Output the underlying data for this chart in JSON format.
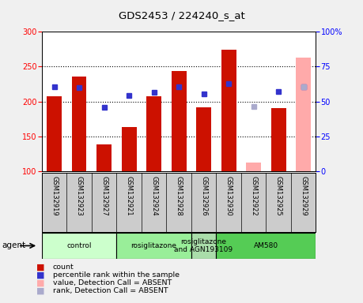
{
  "title": "GDS2453 / 224240_s_at",
  "samples": [
    "GSM132919",
    "GSM132923",
    "GSM132927",
    "GSM132921",
    "GSM132924",
    "GSM132928",
    "GSM132926",
    "GSM132930",
    "GSM132922",
    "GSM132925",
    "GSM132929"
  ],
  "bar_values": [
    207,
    236,
    138,
    163,
    207,
    244,
    192,
    274,
    null,
    191,
    null
  ],
  "bar_color_present": "#cc1100",
  "bar_color_absent": "#ffaaaa",
  "absent_bar_values": [
    null,
    null,
    null,
    null,
    null,
    null,
    null,
    null,
    112,
    null,
    263
  ],
  "dot_values": [
    221,
    220,
    192,
    209,
    213,
    221,
    211,
    226,
    null,
    214,
    221
  ],
  "dot_color_present": "#3333cc",
  "dot_color_absent": "#aaaacc",
  "absent_dot_values": [
    null,
    null,
    null,
    null,
    null,
    null,
    null,
    null,
    193,
    null,
    221
  ],
  "ylim_left": [
    100,
    300
  ],
  "ylim_right": [
    0,
    100
  ],
  "yticks_left": [
    100,
    150,
    200,
    250,
    300
  ],
  "yticks_right": [
    0,
    25,
    50,
    75,
    100
  ],
  "ytick_labels_right": [
    "0",
    "25",
    "50",
    "75",
    "100%"
  ],
  "grid_lines": [
    150,
    200,
    250
  ],
  "groups": [
    {
      "label": "control",
      "start": 0,
      "end": 2,
      "color": "#ccffcc"
    },
    {
      "label": "rosiglitazone",
      "start": 3,
      "end": 5,
      "color": "#99ee99"
    },
    {
      "label": "rosiglitazone\nand AGN193109",
      "start": 6,
      "end": 6,
      "color": "#aaddaa"
    },
    {
      "label": "AM580",
      "start": 7,
      "end": 10,
      "color": "#55cc55"
    }
  ],
  "legend_items": [
    {
      "label": "count",
      "color": "#cc1100"
    },
    {
      "label": "percentile rank within the sample",
      "color": "#3333cc"
    },
    {
      "label": "value, Detection Call = ABSENT",
      "color": "#ffaaaa"
    },
    {
      "label": "rank, Detection Call = ABSENT",
      "color": "#aaaacc"
    }
  ],
  "sample_box_color": "#cccccc",
  "fig_bg_color": "#f0f0f0"
}
